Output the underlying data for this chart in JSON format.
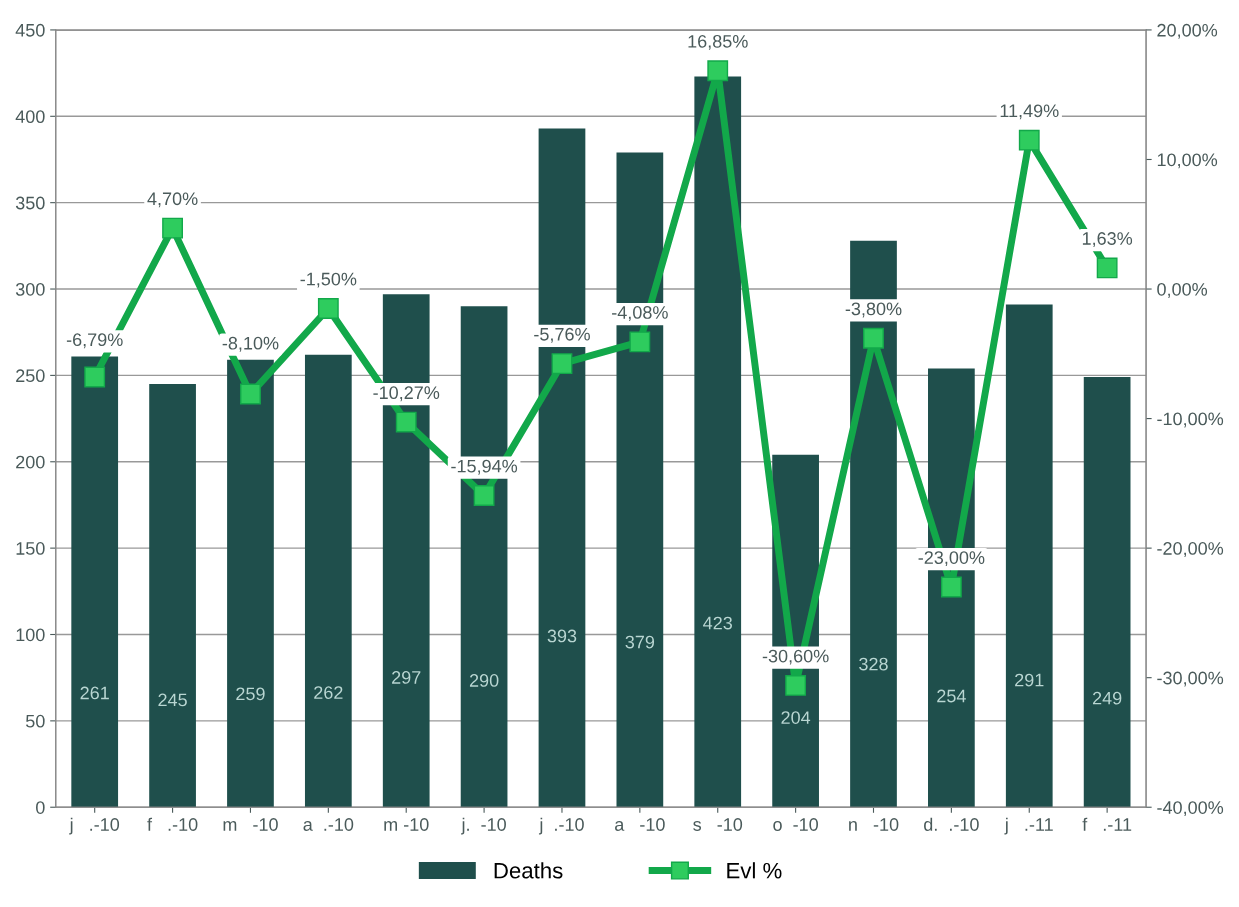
{
  "chart_data": {
    "type": "bar",
    "categories": [
      "j   .-10",
      "f   .-10",
      "m   -10",
      "a  .-10",
      "m -10",
      "j.  -10",
      "j  .-10",
      "a   -10",
      "s   -10",
      "o  -10",
      "n   -10",
      "d.  .-10",
      "j   .-11",
      "f   .-11"
    ],
    "series": [
      {
        "name": "Deaths",
        "color": "#1f4f4c",
        "values": [
          261,
          245,
          259,
          262,
          297,
          290,
          393,
          379,
          423,
          204,
          328,
          254,
          291,
          249
        ]
      },
      {
        "name": "Evl %",
        "type": "line",
        "axis": "y2",
        "color": "#12a84a",
        "marker": "square",
        "values": [
          -6.79,
          4.7,
          -8.1,
          -1.5,
          -10.27,
          -15.94,
          -5.76,
          -4.08,
          16.85,
          -30.6,
          -3.8,
          -23.0,
          11.49,
          1.63
        ],
        "value_labels": [
          "-6,79%",
          "4,70%",
          "-8,10%",
          "-1,50%",
          "-10,27%",
          "-15,94%",
          "-5,76%",
          "-4,08%",
          "16,85%",
          "-30,60%",
          "-3,80%",
          "-23,00%",
          "11,49%",
          "1,63%"
        ]
      }
    ],
    "data_labels": true,
    "ylim": [
      0,
      450
    ],
    "yticks": [
      0,
      50,
      100,
      150,
      200,
      250,
      300,
      350,
      400,
      450
    ],
    "y2lim": [
      -40,
      20
    ],
    "y2ticks": [
      {
        "value": -40,
        "label": "-40,00%"
      },
      {
        "value": -30,
        "label": "-30,00%"
      },
      {
        "value": -20,
        "label": "-20,00%"
      },
      {
        "value": -10,
        "label": "-10,00%"
      },
      {
        "value": 0,
        "label": "0,00%"
      },
      {
        "value": 10,
        "label": "10,00%"
      },
      {
        "value": 20,
        "label": "20,00%"
      }
    ],
    "grid": "y",
    "legend": "bottom"
  }
}
